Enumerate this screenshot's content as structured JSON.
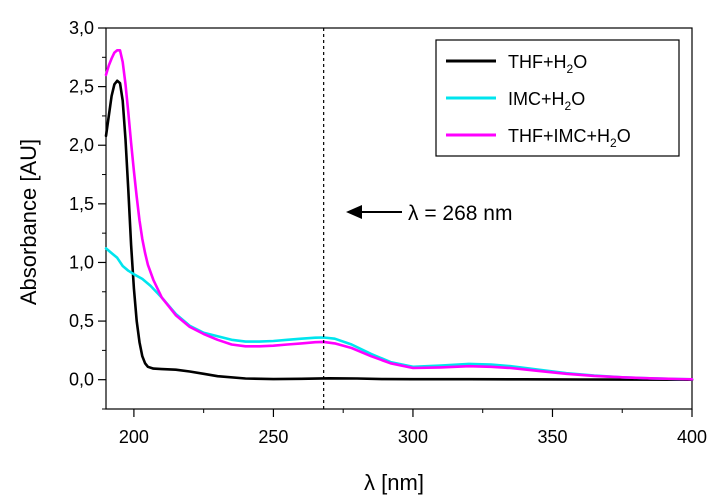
{
  "chart_data": {
    "type": "line",
    "title": "",
    "xlabel": "λ [nm]",
    "ylabel": "Absorbance [AU]",
    "xlim": [
      190,
      400
    ],
    "ylim": [
      -0.25,
      3.0
    ],
    "x_ticks": [
      "200",
      "250",
      "300",
      "350",
      "400"
    ],
    "y_ticks": [
      "0,0",
      "0,5",
      "1,0",
      "1,5",
      "2,0",
      "2,5",
      "3,0"
    ],
    "x_tick_values": [
      200,
      250,
      300,
      350,
      400
    ],
    "y_tick_values": [
      0,
      0.5,
      1.0,
      1.5,
      2.0,
      2.5,
      3.0
    ],
    "legend_position": "top-right",
    "grid": false,
    "series": [
      {
        "name_main": "THF+H",
        "name_sub": "2",
        "name_end": "O",
        "color": "#000000",
        "points": [
          [
            190,
            2.08
          ],
          [
            191,
            2.25
          ],
          [
            192,
            2.42
          ],
          [
            193,
            2.52
          ],
          [
            194,
            2.55
          ],
          [
            195,
            2.53
          ],
          [
            196,
            2.38
          ],
          [
            197,
            2.05
          ],
          [
            198,
            1.62
          ],
          [
            199,
            1.15
          ],
          [
            200,
            0.78
          ],
          [
            201,
            0.5
          ],
          [
            202,
            0.32
          ],
          [
            203,
            0.2
          ],
          [
            204,
            0.14
          ],
          [
            205,
            0.11
          ],
          [
            207,
            0.095
          ],
          [
            210,
            0.09
          ],
          [
            215,
            0.085
          ],
          [
            220,
            0.07
          ],
          [
            225,
            0.05
          ],
          [
            230,
            0.03
          ],
          [
            240,
            0.01
          ],
          [
            250,
            0.005
          ],
          [
            260,
            0.008
          ],
          [
            270,
            0.012
          ],
          [
            280,
            0.01
          ],
          [
            290,
            0.005
          ],
          [
            300,
            0.004
          ],
          [
            320,
            0.004
          ],
          [
            340,
            0.003
          ],
          [
            360,
            0.002
          ],
          [
            380,
            0.001
          ],
          [
            400,
            0.0
          ]
        ]
      },
      {
        "name_main": "IMC+H",
        "name_sub": "2",
        "name_end": "O",
        "color": "#00e5ee",
        "points": [
          [
            190,
            1.12
          ],
          [
            192,
            1.08
          ],
          [
            194,
            1.04
          ],
          [
            196,
            0.97
          ],
          [
            198,
            0.93
          ],
          [
            200,
            0.9
          ],
          [
            203,
            0.86
          ],
          [
            206,
            0.8
          ],
          [
            210,
            0.7
          ],
          [
            215,
            0.56
          ],
          [
            220,
            0.46
          ],
          [
            225,
            0.4
          ],
          [
            230,
            0.37
          ],
          [
            235,
            0.34
          ],
          [
            240,
            0.325
          ],
          [
            245,
            0.325
          ],
          [
            250,
            0.33
          ],
          [
            255,
            0.34
          ],
          [
            260,
            0.35
          ],
          [
            265,
            0.358
          ],
          [
            268,
            0.36
          ],
          [
            272,
            0.35
          ],
          [
            278,
            0.3
          ],
          [
            285,
            0.22
          ],
          [
            292,
            0.15
          ],
          [
            300,
            0.11
          ],
          [
            310,
            0.12
          ],
          [
            320,
            0.135
          ],
          [
            328,
            0.13
          ],
          [
            335,
            0.115
          ],
          [
            345,
            0.085
          ],
          [
            355,
            0.055
          ],
          [
            365,
            0.035
          ],
          [
            375,
            0.02
          ],
          [
            385,
            0.012
          ],
          [
            395,
            0.006
          ],
          [
            400,
            0.003
          ]
        ]
      },
      {
        "name_main": "THF+IMC+H",
        "name_sub": "2",
        "name_end": "O",
        "color": "#ff00ff",
        "points": [
          [
            190,
            2.6
          ],
          [
            191,
            2.68
          ],
          [
            192,
            2.74
          ],
          [
            193,
            2.79
          ],
          [
            194,
            2.81
          ],
          [
            195,
            2.81
          ],
          [
            196,
            2.71
          ],
          [
            197,
            2.52
          ],
          [
            198,
            2.28
          ],
          [
            199,
            2.02
          ],
          [
            200,
            1.78
          ],
          [
            201,
            1.56
          ],
          [
            202,
            1.36
          ],
          [
            203,
            1.2
          ],
          [
            204,
            1.08
          ],
          [
            205,
            0.98
          ],
          [
            207,
            0.85
          ],
          [
            210,
            0.7
          ],
          [
            215,
            0.55
          ],
          [
            220,
            0.45
          ],
          [
            225,
            0.39
          ],
          [
            230,
            0.34
          ],
          [
            235,
            0.3
          ],
          [
            240,
            0.285
          ],
          [
            245,
            0.285
          ],
          [
            250,
            0.29
          ],
          [
            255,
            0.3
          ],
          [
            260,
            0.31
          ],
          [
            265,
            0.32
          ],
          [
            268,
            0.322
          ],
          [
            272,
            0.31
          ],
          [
            278,
            0.27
          ],
          [
            285,
            0.2
          ],
          [
            292,
            0.14
          ],
          [
            300,
            0.1
          ],
          [
            310,
            0.105
          ],
          [
            320,
            0.115
          ],
          [
            328,
            0.11
          ],
          [
            335,
            0.1
          ],
          [
            345,
            0.075
          ],
          [
            355,
            0.05
          ],
          [
            365,
            0.032
          ],
          [
            375,
            0.02
          ],
          [
            385,
            0.012
          ],
          [
            395,
            0.006
          ],
          [
            400,
            0.003
          ]
        ]
      }
    ],
    "annotation": {
      "x_value": 268,
      "label": "λ = 268 nm"
    }
  }
}
